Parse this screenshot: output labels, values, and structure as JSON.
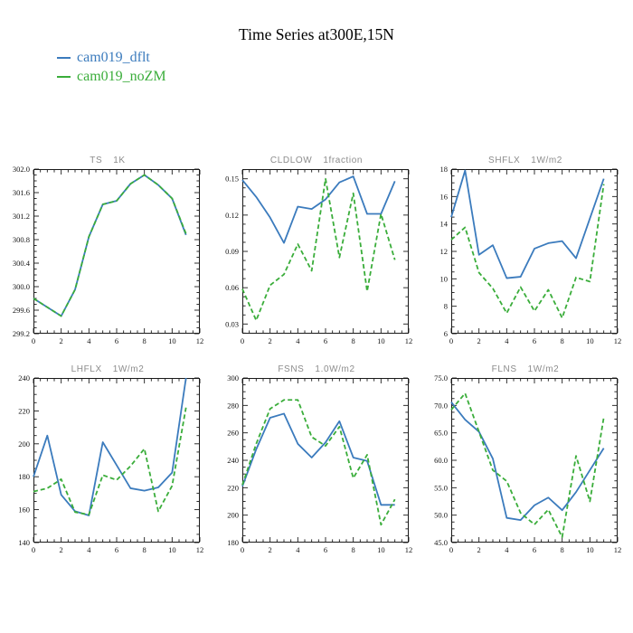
{
  "header": {
    "title": "Time Series at300E,15N"
  },
  "legend": {
    "items": [
      {
        "label": "cam019_dflt",
        "color": "#3b7bbd"
      },
      {
        "label": "cam019_noZM",
        "color": "#3aad3a"
      }
    ]
  },
  "chart_data": {
    "type": "line",
    "x": [
      0,
      1,
      2,
      3,
      4,
      5,
      6,
      7,
      8,
      9,
      10,
      11
    ],
    "xlim": [
      0,
      12
    ],
    "xticks": [
      0,
      2,
      4,
      6,
      8,
      10,
      12
    ],
    "legend_position": "top-left",
    "grid": false,
    "plots": [
      {
        "title": "TS",
        "units": "1K",
        "ylim": [
          299.2,
          302.0
        ],
        "ytick_vals": [
          299.2,
          299.6,
          300.0,
          300.4,
          300.8,
          301.2,
          301.6,
          302.0
        ],
        "ytick_labels": [
          "299.2",
          "299.6",
          "300.0",
          "300.4",
          "300.8",
          "301.2",
          "301.6",
          "302.0"
        ],
        "series": [
          {
            "name": "cam019_dflt",
            "style": "solid",
            "values": [
              299.8,
              299.65,
              299.5,
              299.95,
              300.85,
              301.4,
              301.46,
              301.75,
              301.9,
              301.73,
              301.5,
              300.88
            ]
          },
          {
            "name": "cam019_noZM",
            "style": "dashed",
            "values": [
              299.8,
              299.65,
              299.5,
              299.95,
              300.85,
              301.4,
              301.46,
              301.75,
              301.9,
              301.73,
              301.5,
              300.9
            ]
          }
        ]
      },
      {
        "title": "CLDLOW",
        "units": "1fraction",
        "ylim": [
          0.022,
          0.158
        ],
        "ytick_vals": [
          0.03,
          0.06,
          0.09,
          0.12,
          0.15
        ],
        "ytick_labels": [
          "0.03",
          "0.06",
          "0.09",
          "0.12",
          "0.15"
        ],
        "series": [
          {
            "name": "cam019_dflt",
            "style": "solid",
            "values": [
              0.149,
              0.135,
              0.118,
              0.097,
              0.127,
              0.125,
              0.133,
              0.147,
              0.152,
              0.121,
              0.121,
              0.148
            ]
          },
          {
            "name": "cam019_noZM",
            "style": "dashed",
            "values": [
              0.059,
              0.033,
              0.062,
              0.071,
              0.096,
              0.074,
              0.15,
              0.085,
              0.138,
              0.057,
              0.121,
              0.083
            ]
          }
        ]
      },
      {
        "title": "SHFLX",
        "units": "1W/m2",
        "ylim": [
          6,
          18
        ],
        "ytick_vals": [
          6,
          8,
          10,
          12,
          14,
          16,
          18
        ],
        "ytick_labels": [
          "6",
          "8",
          "10",
          "12",
          "14",
          "16",
          "18"
        ],
        "series": [
          {
            "name": "cam019_dflt",
            "style": "solid",
            "values": [
              14.5,
              17.9,
              11.75,
              12.45,
              10.05,
              10.15,
              12.2,
              12.6,
              12.75,
              11.5,
              14.4,
              17.3
            ]
          },
          {
            "name": "cam019_noZM",
            "style": "dashed",
            "values": [
              12.85,
              13.75,
              10.45,
              9.3,
              7.5,
              9.4,
              7.65,
              9.2,
              7.15,
              10.1,
              9.8,
              16.9
            ]
          }
        ]
      },
      {
        "title": "LHFLX",
        "units": "1W/m2",
        "ylim": [
          140,
          240
        ],
        "ytick_vals": [
          140,
          160,
          180,
          200,
          220,
          240
        ],
        "ytick_labels": [
          "140",
          "160",
          "180",
          "200",
          "220",
          "240"
        ],
        "series": [
          {
            "name": "cam019_dflt",
            "style": "solid",
            "values": [
              180,
              205,
              169,
              159,
              156.5,
              201,
              187,
              173,
              171.5,
              173.5,
              182.5,
              240
            ]
          },
          {
            "name": "cam019_noZM",
            "style": "dashed",
            "values": [
              171,
              173,
              178.5,
              158.5,
              157,
              181,
              178,
              186.5,
              197,
              159,
              174.5,
              222
            ]
          }
        ]
      },
      {
        "title": "FSNS",
        "units": "1.0W/m2",
        "ylim": [
          180,
          300
        ],
        "ytick_vals": [
          180,
          200,
          220,
          240,
          260,
          280,
          300
        ],
        "ytick_labels": [
          "180",
          "200",
          "220",
          "240",
          "260",
          "280",
          "300"
        ],
        "series": [
          {
            "name": "cam019_dflt",
            "style": "solid",
            "values": [
              221,
              248,
              271,
              274,
              252,
              242,
              253,
              268.5,
              242,
              239.5,
              207.5,
              207.5
            ]
          },
          {
            "name": "cam019_noZM",
            "style": "dashed",
            "values": [
              222,
              252,
              277.5,
              284,
              284,
              257,
              250.5,
              264.5,
              227,
              244,
              193,
              211.5
            ]
          }
        ]
      },
      {
        "title": "FLNS",
        "units": "1W/m2",
        "ylim": [
          45.0,
          75.0
        ],
        "ytick_vals": [
          45,
          50,
          55,
          60,
          65,
          70,
          75
        ],
        "ytick_labels": [
          "45.0",
          "50.0",
          "55.0",
          "60.0",
          "65.0",
          "70.0",
          "75.0"
        ],
        "series": [
          {
            "name": "cam019_dflt",
            "style": "solid",
            "values": [
              70.6,
              67.4,
              65.2,
              60.3,
              49.5,
              49.1,
              51.8,
              53.2,
              50.9,
              54.2,
              58.2,
              62.2
            ]
          },
          {
            "name": "cam019_noZM",
            "style": "dashed",
            "values": [
              69.2,
              72.2,
              65.2,
              58.2,
              56.2,
              50.4,
              48.3,
              51.0,
              46.0,
              60.8,
              52.5,
              67.8
            ]
          }
        ]
      }
    ]
  }
}
